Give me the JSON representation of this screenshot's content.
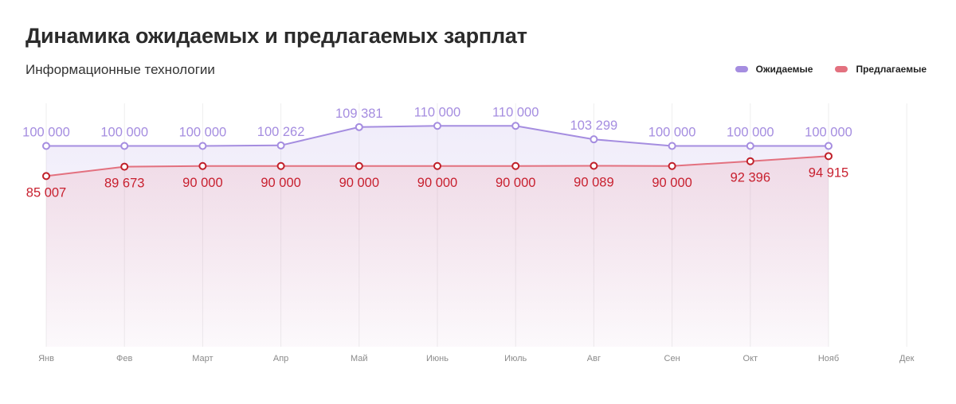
{
  "title": "Динамика ожидаемых и предлагаемых зарплат",
  "subtitle": "Информационные технологии",
  "colors": {
    "expected": "#a58de0",
    "offered": "#e3717f",
    "expected_label": "#a58de0",
    "offered_label": "#c8202f",
    "offered_point": "#c0202a"
  },
  "chart_data": {
    "type": "line",
    "title": "Динамика ожидаемых и предлагаемых зарплат",
    "subtitle": "Информационные технологии",
    "categories": [
      "Янв",
      "Фев",
      "Март",
      "Апр",
      "Май",
      "Июнь",
      "Июль",
      "Авг",
      "Сен",
      "Окт",
      "Нояб",
      "Дек"
    ],
    "series": [
      {
        "name": "Ожидаемые",
        "color": "#a58de0",
        "values": [
          100000,
          100000,
          100000,
          100262,
          109381,
          110000,
          110000,
          103299,
          100000,
          100000,
          100000,
          null
        ],
        "labels": [
          "100 000",
          "100 000",
          "100 000",
          "100 262",
          "109 381",
          "110 000",
          "110 000",
          "103 299",
          "100 000",
          "100 000",
          "100 000",
          ""
        ]
      },
      {
        "name": "Предлагаемые",
        "color": "#e3717f",
        "values": [
          85007,
          89673,
          90000,
          90000,
          90000,
          90000,
          90000,
          90089,
          90000,
          92396,
          94915,
          null
        ],
        "labels": [
          "85 007",
          "89 673",
          "90 000",
          "90 000",
          "90 000",
          "90 000",
          "90 000",
          "90 089",
          "90 000",
          "92 396",
          "94 915",
          ""
        ]
      }
    ],
    "ylim": [
      0,
      160000
    ],
    "xlabel": "",
    "ylabel": "",
    "grid": "vertical",
    "legend": "top-right"
  }
}
